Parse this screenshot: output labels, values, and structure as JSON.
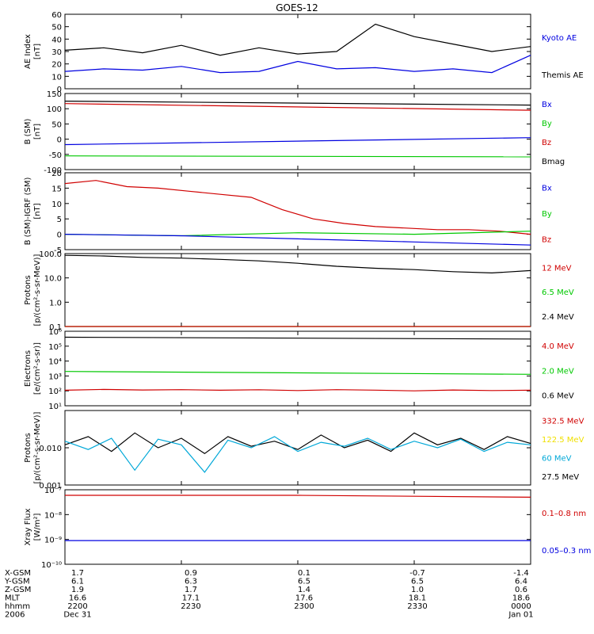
{
  "title": "GOES-12",
  "colors": {
    "black": "#000000",
    "blue": "#0000e0",
    "green": "#00c800",
    "red": "#d00000",
    "yellow": "#f0e000",
    "cyan": "#00a8d8"
  },
  "time_ticks": [
    "2200",
    "2230",
    "2300",
    "2330",
    "0000"
  ],
  "chart_data": [
    {
      "type": "line",
      "ylabel": [
        "AE Index",
        "[nT]"
      ],
      "ylim": [
        0,
        60
      ],
      "yscale": "linear",
      "yticks": [
        0,
        10,
        20,
        30,
        40,
        50,
        60
      ],
      "legend": [
        {
          "label": "Kyoto AE",
          "color": "blue"
        },
        {
          "label": "Themis AE",
          "color": "black"
        }
      ],
      "series": [
        {
          "name": "Themis AE",
          "color": "black",
          "x": [
            0,
            5,
            10,
            15,
            20,
            25,
            30,
            35,
            40,
            45,
            50,
            55,
            60
          ],
          "y": [
            31,
            33,
            29,
            35,
            27,
            33,
            28,
            30,
            52,
            42,
            36,
            30,
            34
          ]
        },
        {
          "name": "Kyoto AE",
          "color": "blue",
          "x": [
            0,
            5,
            10,
            15,
            20,
            25,
            30,
            35,
            40,
            45,
            50,
            55,
            60
          ],
          "y": [
            14,
            16,
            15,
            18,
            13,
            14,
            22,
            16,
            17,
            14,
            16,
            13,
            27
          ]
        }
      ]
    },
    {
      "type": "line",
      "ylabel": [
        "B (SM)",
        "[nT]"
      ],
      "ylim": [
        -100,
        150
      ],
      "yscale": "linear",
      "yticks": [
        -100,
        -50,
        0,
        50,
        100,
        150
      ],
      "legend": [
        {
          "label": "Bx",
          "color": "blue"
        },
        {
          "label": "By",
          "color": "green"
        },
        {
          "label": "Bz",
          "color": "red"
        },
        {
          "label": "Bmag",
          "color": "black"
        }
      ],
      "series": [
        {
          "name": "Bmag",
          "color": "black",
          "x": [
            0,
            60
          ],
          "y": [
            125,
            112
          ]
        },
        {
          "name": "Bz",
          "color": "red",
          "x": [
            0,
            60
          ],
          "y": [
            117,
            95
          ]
        },
        {
          "name": "Bx",
          "color": "blue",
          "x": [
            0,
            60
          ],
          "y": [
            -18,
            5
          ]
        },
        {
          "name": "By",
          "color": "green",
          "x": [
            0,
            60
          ],
          "y": [
            -55,
            -58
          ]
        }
      ]
    },
    {
      "type": "line",
      "ylabel": [
        "B (SM)-IGRF (SM)",
        "[nT]"
      ],
      "ylim": [
        -5,
        20
      ],
      "yscale": "linear",
      "yticks": [
        -5,
        0,
        5,
        10,
        15,
        20
      ],
      "legend": [
        {
          "label": "Bx",
          "color": "blue"
        },
        {
          "label": "By",
          "color": "green"
        },
        {
          "label": "Bz",
          "color": "red"
        }
      ],
      "series": [
        {
          "name": "Bz",
          "color": "red",
          "x": [
            0,
            4,
            8,
            12,
            16,
            20,
            24,
            28,
            32,
            36,
            40,
            44,
            48,
            52,
            56,
            60
          ],
          "y": [
            16.5,
            17.5,
            15.5,
            15,
            14,
            13,
            12,
            8,
            5,
            3.5,
            2.5,
            2,
            1.5,
            1.5,
            1,
            0
          ]
        },
        {
          "name": "By",
          "color": "green",
          "x": [
            0,
            15,
            30,
            45,
            60
          ],
          "y": [
            0,
            -0.5,
            0.5,
            0,
            1
          ]
        },
        {
          "name": "Bx",
          "color": "blue",
          "x": [
            0,
            15,
            30,
            45,
            60
          ],
          "y": [
            0,
            -0.5,
            -1.5,
            -2.5,
            -3.5
          ]
        }
      ]
    },
    {
      "type": "line",
      "ylabel": [
        "Protons",
        "[p/(cm²-s-sr-MeV)]"
      ],
      "ylim": [
        0.1,
        100
      ],
      "yscale": "log",
      "yticks": [
        0.1,
        1.0,
        10.0,
        100.0
      ],
      "yticklabels": [
        "0.1",
        "1.0",
        "10.0",
        "100.0"
      ],
      "legend": [
        {
          "label": "12 MeV",
          "color": "red"
        },
        {
          "label": "6.5 MeV",
          "color": "green"
        },
        {
          "label": "2.4 MeV",
          "color": "black"
        }
      ],
      "series": [
        {
          "name": "2.4 MeV",
          "color": "black",
          "x": [
            0,
            5,
            10,
            15,
            20,
            25,
            30,
            35,
            40,
            45,
            50,
            55,
            60
          ],
          "y": [
            85,
            80,
            70,
            65,
            58,
            50,
            40,
            30,
            25,
            22,
            18,
            16,
            20
          ]
        },
        {
          "name": "6.5 MeV",
          "color": "green",
          "x": [
            0,
            60
          ],
          "y": [
            0.1,
            0.1
          ]
        },
        {
          "name": "12 MeV",
          "color": "red",
          "x": [
            0,
            60
          ],
          "y": [
            0.1,
            0.1
          ]
        }
      ]
    },
    {
      "type": "line",
      "ylabel": [
        "Electrons",
        "[e/(cm²-s-sr)]"
      ],
      "ylim": [
        10,
        1000000
      ],
      "yscale": "log",
      "yticks": [
        10,
        100,
        1000,
        10000,
        100000,
        1000000
      ],
      "yticklabels": [
        "10¹",
        "10²",
        "10³",
        "10⁴",
        "10⁵",
        "10⁶"
      ],
      "legend": [
        {
          "label": "4.0 MeV",
          "color": "red"
        },
        {
          "label": "2.0 MeV",
          "color": "green"
        },
        {
          "label": "0.6 MeV",
          "color": "black"
        }
      ],
      "series": [
        {
          "name": "0.6 MeV",
          "color": "black",
          "x": [
            0,
            60
          ],
          "y": [
            400000,
            300000
          ]
        },
        {
          "name": "2.0 MeV",
          "color": "green",
          "x": [
            0,
            60
          ],
          "y": [
            2000,
            1300
          ]
        },
        {
          "name": "4.0 MeV",
          "color": "red",
          "x": [
            0,
            5,
            10,
            15,
            20,
            25,
            30,
            35,
            40,
            45,
            50,
            55,
            60
          ],
          "y": [
            110,
            125,
            115,
            120,
            110,
            118,
            105,
            120,
            112,
            100,
            115,
            105,
            110
          ]
        }
      ]
    },
    {
      "type": "line",
      "ylabel": [
        "Protons",
        "[p/(cm²-s-sr-MeV)]"
      ],
      "ylim": [
        0.001,
        0.1
      ],
      "yscale": "log",
      "yticks": [
        0.001,
        0.01
      ],
      "yticklabels": [
        "0.001",
        "0.010"
      ],
      "legend": [
        {
          "label": "332.5 MeV",
          "color": "red"
        },
        {
          "label": "122.5 MeV",
          "color": "yellow"
        },
        {
          "label": "60 MeV",
          "color": "cyan"
        },
        {
          "label": "27.5 MeV",
          "color": "black"
        }
      ],
      "series": [
        {
          "name": "27.5 MeV",
          "color": "black",
          "x": [
            0,
            3,
            6,
            9,
            12,
            15,
            18,
            21,
            24,
            27,
            30,
            33,
            36,
            39,
            42,
            45,
            48,
            51,
            54,
            57,
            60
          ],
          "y": [
            0.012,
            0.02,
            0.008,
            0.025,
            0.01,
            0.018,
            0.007,
            0.02,
            0.011,
            0.015,
            0.009,
            0.022,
            0.01,
            0.016,
            0.008,
            0.025,
            0.012,
            0.018,
            0.009,
            0.02,
            0.013
          ]
        },
        {
          "name": "60 MeV",
          "color": "cyan",
          "x": [
            0,
            3,
            6,
            9,
            12,
            15,
            18,
            21,
            24,
            27,
            30,
            33,
            36,
            39,
            42,
            45,
            48,
            51,
            54,
            57,
            60
          ],
          "y": [
            0.015,
            0.009,
            0.018,
            0.0025,
            0.017,
            0.012,
            0.0022,
            0.016,
            0.01,
            0.02,
            0.008,
            0.014,
            0.011,
            0.018,
            0.009,
            0.015,
            0.01,
            0.017,
            0.008,
            0.014,
            0.012
          ]
        }
      ]
    },
    {
      "type": "line",
      "ylabel": [
        "Xray Flux",
        "[W/m²]"
      ],
      "ylim": [
        1e-10,
        1e-07
      ],
      "yscale": "log",
      "yticks": [
        1e-10,
        1e-09,
        1e-08,
        1e-07
      ],
      "yticklabels": [
        "10⁻¹⁰",
        "10⁻⁹",
        "10⁻⁸",
        "10⁻⁷"
      ],
      "legend": [
        {
          "label": "0.1–0.8 nm",
          "color": "red"
        },
        {
          "label": "0.05–0.3 nm",
          "color": "blue"
        }
      ],
      "series": [
        {
          "name": "0.1–0.8 nm",
          "color": "red",
          "x": [
            0,
            30,
            60
          ],
          "y": [
            6e-08,
            6e-08,
            5e-08
          ]
        },
        {
          "name": "0.05–0.3 nm",
          "color": "blue",
          "x": [
            0,
            30,
            60
          ],
          "y": [
            9e-10,
            9e-10,
            9e-10
          ]
        }
      ]
    }
  ],
  "orbit_table": {
    "rows": [
      {
        "label": "X-GSM",
        "values": [
          "1.7",
          "0.9",
          "0.1",
          "-0.7",
          "-1.4"
        ]
      },
      {
        "label": "Y-GSM",
        "values": [
          "6.1",
          "6.3",
          "6.5",
          "6.5",
          "6.4"
        ]
      },
      {
        "label": "Z-GSM",
        "values": [
          "1.9",
          "1.7",
          "1.4",
          "1.0",
          "0.6"
        ]
      },
      {
        "label": "MLT",
        "values": [
          "16.6",
          "17.1",
          "17.6",
          "18.1",
          "18.6"
        ]
      },
      {
        "label": "hhmm",
        "values": [
          "2200",
          "2230",
          "2300",
          "2330",
          "0000"
        ]
      },
      {
        "label": "2006",
        "values": [
          "Dec 31",
          "",
          "",
          "",
          "Jan 01"
        ]
      }
    ]
  }
}
